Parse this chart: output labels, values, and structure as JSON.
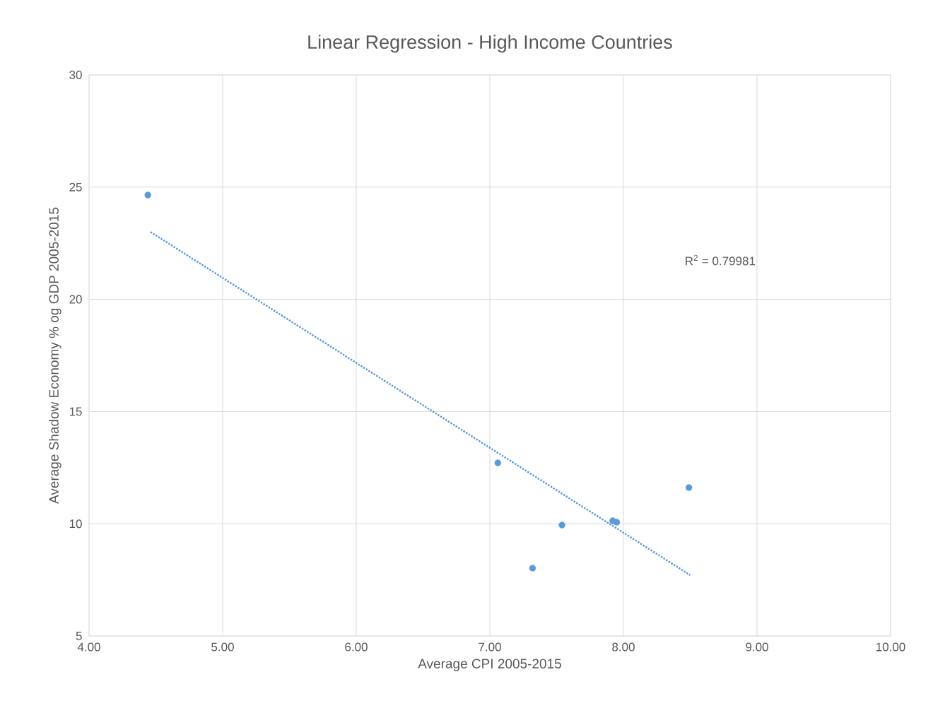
{
  "chart_data": {
    "type": "scatter",
    "title": "Linear Regression - High Income Countries",
    "xlabel": "Average CPI 2005-2015",
    "ylabel": "Average Shadow Economy % og GDP 2005-2015",
    "series": [
      {
        "color": "#5b9bd5",
        "marker": "circle",
        "x": [
          4.44,
          7.06,
          7.32,
          7.54,
          7.92,
          7.95,
          8.49
        ],
        "values": [
          24.65,
          12.71,
          8.02,
          9.94,
          10.13,
          10.07,
          11.61
        ]
      },
      {
        "type": "line",
        "color": "#5b9bd5",
        "marker": "none",
        "line_style": "dotted",
        "x": [
          4.46,
          8.5
        ],
        "values": [
          23.0,
          7.71
        ]
      }
    ],
    "xlim": [
      4,
      10
    ],
    "ylim": [
      5,
      30
    ],
    "xticks": [
      {
        "value": 4,
        "label": "4.00"
      },
      {
        "value": 5,
        "label": "5.00"
      },
      {
        "value": 6,
        "label": "6.00"
      },
      {
        "value": 7,
        "label": "7.00"
      },
      {
        "value": 8,
        "label": "8.00"
      },
      {
        "value": 9,
        "label": "9.00"
      },
      {
        "value": 10,
        "label": "10.00"
      }
    ],
    "yticks": [
      5,
      10,
      15,
      20,
      25,
      30
    ],
    "grid": true,
    "annotations": [
      "R$^{2}$ = 0.79981"
    ]
  }
}
